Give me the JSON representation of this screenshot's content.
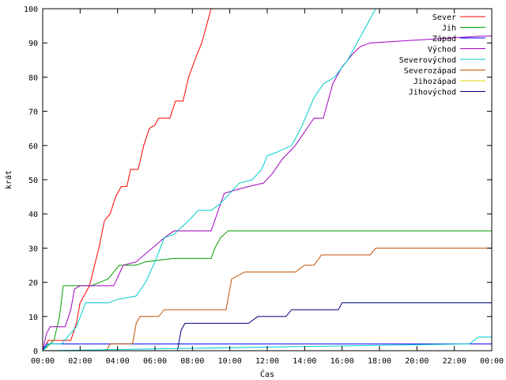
{
  "chart_data": {
    "type": "line",
    "xlabel": "Čas",
    "ylabel": "krát",
    "xlim": [
      0,
      24
    ],
    "ylim": [
      0,
      100
    ],
    "x_ticks": [
      {
        "v": 0,
        "label": "00:00"
      },
      {
        "v": 2,
        "label": "02:00"
      },
      {
        "v": 4,
        "label": "04:00"
      },
      {
        "v": 6,
        "label": "06:00"
      },
      {
        "v": 8,
        "label": "08:00"
      },
      {
        "v": 10,
        "label": "10:00"
      },
      {
        "v": 12,
        "label": "12:00"
      },
      {
        "v": 14,
        "label": "14:00"
      },
      {
        "v": 16,
        "label": "16:00"
      },
      {
        "v": 18,
        "label": "18:00"
      },
      {
        "v": 20,
        "label": "20:00"
      },
      {
        "v": 22,
        "label": "22:00"
      },
      {
        "v": 24,
        "label": "00:00"
      }
    ],
    "y_ticks": [
      0,
      10,
      20,
      30,
      40,
      50,
      60,
      70,
      80,
      90,
      100
    ],
    "grid": false,
    "legend_position": "top-right",
    "series": [
      {
        "name": "Sever",
        "color": "#ff0000",
        "points": [
          [
            0,
            0
          ],
          [
            0.3,
            3
          ],
          [
            1.5,
            3
          ],
          [
            1.8,
            8
          ],
          [
            2,
            14
          ],
          [
            2.5,
            19
          ],
          [
            3,
            30
          ],
          [
            3.3,
            38
          ],
          [
            3.6,
            40
          ],
          [
            3.9,
            45
          ],
          [
            4.2,
            48
          ],
          [
            4.5,
            48
          ],
          [
            4.7,
            53
          ],
          [
            5.1,
            53
          ],
          [
            5.4,
            60
          ],
          [
            5.7,
            65
          ],
          [
            6,
            66
          ],
          [
            6.2,
            68
          ],
          [
            6.8,
            68
          ],
          [
            7.1,
            73
          ],
          [
            7.5,
            73
          ],
          [
            7.8,
            80
          ],
          [
            8.2,
            86
          ],
          [
            8.5,
            90
          ],
          [
            8.8,
            96
          ],
          [
            9,
            100
          ]
        ]
      },
      {
        "name": "Jih",
        "color": "#00a000",
        "points": [
          [
            0,
            0
          ],
          [
            0.6,
            3
          ],
          [
            0.9,
            10
          ],
          [
            1.1,
            19
          ],
          [
            2.6,
            19
          ],
          [
            3.5,
            21
          ],
          [
            4.1,
            25
          ],
          [
            5,
            25
          ],
          [
            5.5,
            26
          ],
          [
            7,
            27
          ],
          [
            9,
            27
          ],
          [
            9.2,
            30
          ],
          [
            9.5,
            33
          ],
          [
            9.9,
            35
          ],
          [
            24,
            35
          ]
        ]
      },
      {
        "name": "Západ",
        "color": "#0000ff",
        "points": [
          [
            0,
            0
          ],
          [
            0.2,
            2
          ],
          [
            0.5,
            2
          ],
          [
            24,
            2
          ]
        ]
      },
      {
        "name": "Východ",
        "color": "#a000c0",
        "points": [
          [
            0,
            0
          ],
          [
            0.2,
            5
          ],
          [
            0.4,
            7
          ],
          [
            1.2,
            7
          ],
          [
            1.5,
            12
          ],
          [
            1.7,
            18
          ],
          [
            2,
            19
          ],
          [
            3.8,
            19
          ],
          [
            4.3,
            25
          ],
          [
            5,
            26
          ],
          [
            6.5,
            33
          ],
          [
            7,
            35
          ],
          [
            9,
            35
          ],
          [
            9.7,
            46
          ],
          [
            10.3,
            47
          ],
          [
            11,
            48
          ],
          [
            11.8,
            49
          ],
          [
            12.3,
            52
          ],
          [
            12.8,
            56
          ],
          [
            13.5,
            60
          ],
          [
            14,
            64
          ],
          [
            14.5,
            68
          ],
          [
            15,
            68
          ],
          [
            15.5,
            78
          ],
          [
            16,
            83
          ],
          [
            16.6,
            87
          ],
          [
            17,
            89
          ],
          [
            17.5,
            90
          ],
          [
            23.5,
            92
          ],
          [
            24,
            92
          ]
        ]
      },
      {
        "name": "Severovýchod",
        "color": "#00cccc",
        "points": [
          [
            0,
            0
          ],
          [
            0.3,
            2
          ],
          [
            1,
            2
          ],
          [
            1.8,
            7
          ],
          [
            2.3,
            14
          ],
          [
            3.5,
            14
          ],
          [
            4,
            15
          ],
          [
            5,
            16
          ],
          [
            5.5,
            20
          ],
          [
            6,
            26
          ],
          [
            6.5,
            33
          ],
          [
            7,
            34
          ],
          [
            7.8,
            38
          ],
          [
            8.3,
            41
          ],
          [
            9,
            41
          ],
          [
            9.5,
            43
          ],
          [
            10.5,
            49
          ],
          [
            11.2,
            50
          ],
          [
            11.7,
            53
          ],
          [
            12,
            57
          ],
          [
            12.5,
            58
          ],
          [
            13.3,
            60
          ],
          [
            13.8,
            65
          ],
          [
            14.5,
            74
          ],
          [
            15,
            78
          ],
          [
            15.6,
            80
          ],
          [
            16.3,
            85
          ],
          [
            16.8,
            90
          ],
          [
            17.3,
            95
          ],
          [
            17.8,
            100
          ]
        ]
      },
      {
        "name": "Severozápad",
        "color": "#c05000",
        "points": [
          [
            0,
            0
          ],
          [
            3.4,
            0
          ],
          [
            3.6,
            2
          ],
          [
            4.8,
            2
          ],
          [
            5,
            8
          ],
          [
            5.2,
            10
          ],
          [
            6.2,
            10
          ],
          [
            6.5,
            12
          ],
          [
            9.8,
            12
          ],
          [
            10.1,
            21
          ],
          [
            10.8,
            23
          ],
          [
            13.5,
            23
          ],
          [
            14,
            25
          ],
          [
            14.5,
            25
          ],
          [
            14.9,
            28
          ],
          [
            17.5,
            28
          ],
          [
            17.8,
            30
          ],
          [
            24,
            30
          ]
        ]
      },
      {
        "name": "Jihozápad",
        "color": "#e6d600",
        "points": []
      },
      {
        "name": "Jihovýchod",
        "color": "#000080",
        "points": [
          [
            0,
            0
          ],
          [
            7.2,
            0
          ],
          [
            7.4,
            6
          ],
          [
            7.6,
            8
          ],
          [
            11,
            8
          ],
          [
            11.5,
            10
          ],
          [
            13,
            10
          ],
          [
            13.3,
            12
          ],
          [
            15.8,
            12
          ],
          [
            16,
            14
          ],
          [
            24,
            14
          ]
        ]
      },
      {
        "name": "",
        "color": "#00cccc",
        "points": [
          [
            0,
            0
          ],
          [
            22.8,
            2
          ],
          [
            23.3,
            4
          ],
          [
            24,
            4
          ]
        ]
      }
    ]
  }
}
